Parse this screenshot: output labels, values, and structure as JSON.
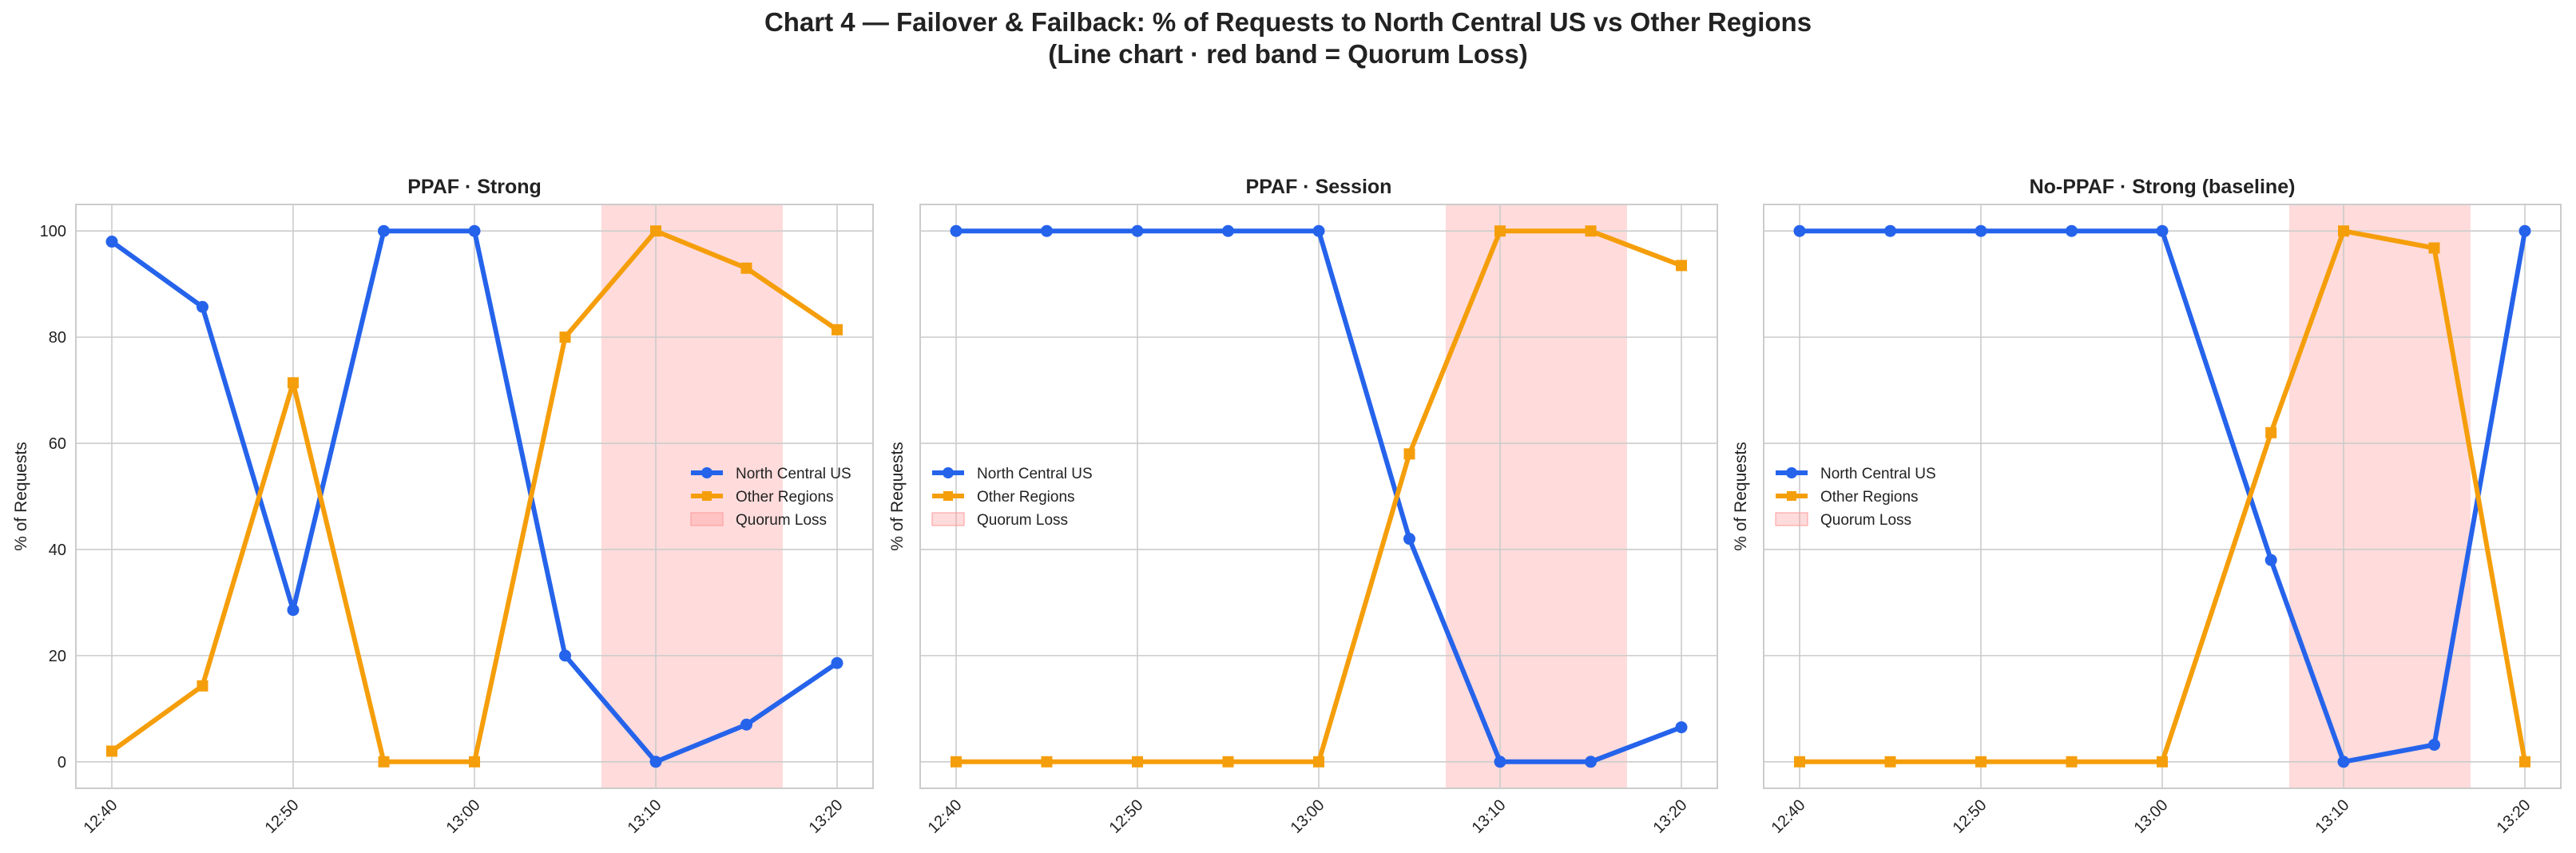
{
  "figure": {
    "title_line1": "Chart 4 — Failover & Failback: % of Requests to North Central US vs Other Regions",
    "title_line2": "(Line chart · red band = Quorum Loss)"
  },
  "colors": {
    "north_central": "#2563eb",
    "other_regions": "#f59e0b",
    "quorum_band": "#ff9999",
    "grid": "#cccccc",
    "frame": "#cccccc"
  },
  "chart_data": [
    {
      "type": "line",
      "title": "PPAF · Strong",
      "ylabel": "% of Requests",
      "xlabel": "",
      "x": [
        "12:40",
        "12:45",
        "12:50",
        "12:55",
        "13:00",
        "13:05",
        "13:10",
        "13:15",
        "13:20"
      ],
      "x_tick_labels": [
        "12:40",
        "12:50",
        "13:00",
        "13:10",
        "13:20"
      ],
      "y_ticks": [
        0,
        20,
        40,
        60,
        80,
        100
      ],
      "ylim": [
        -5,
        105
      ],
      "grid": true,
      "legend_position": "center-right",
      "shaded_region": {
        "label": "Quorum Loss",
        "x_start": "13:07",
        "x_end": "13:17"
      },
      "series": [
        {
          "name": "North Central US",
          "marker": "circle",
          "values": [
            98,
            85.7,
            28.6,
            100,
            100,
            20,
            0,
            7,
            18.6
          ]
        },
        {
          "name": "Other Regions",
          "marker": "square",
          "values": [
            2,
            14.3,
            71.4,
            0,
            0,
            80,
            100,
            93,
            81.4
          ]
        }
      ]
    },
    {
      "type": "line",
      "title": "PPAF · Session",
      "ylabel": "% of Requests",
      "xlabel": "",
      "x": [
        "12:40",
        "12:45",
        "12:50",
        "12:55",
        "13:00",
        "13:05",
        "13:10",
        "13:15",
        "13:20"
      ],
      "x_tick_labels": [
        "12:40",
        "12:50",
        "13:00",
        "13:10",
        "13:20"
      ],
      "y_ticks": [
        0,
        20,
        40,
        60,
        80,
        100
      ],
      "ylim": [
        -5,
        105
      ],
      "grid": true,
      "legend_position": "center-left",
      "shaded_region": {
        "label": "Quorum Loss",
        "x_start": "13:07",
        "x_end": "13:17"
      },
      "series": [
        {
          "name": "North Central US",
          "marker": "circle",
          "values": [
            100,
            100,
            100,
            100,
            100,
            42,
            0,
            0,
            6.5
          ]
        },
        {
          "name": "Other Regions",
          "marker": "square",
          "values": [
            0,
            0,
            0,
            0,
            0,
            58,
            100,
            100,
            93.5
          ]
        }
      ]
    },
    {
      "type": "line",
      "title": "No-PPAF · Strong (baseline)",
      "ylabel": "% of Requests",
      "xlabel": "",
      "x": [
        "12:40",
        "12:45",
        "12:50",
        "12:55",
        "13:00",
        "13:06",
        "13:10",
        "13:15",
        "13:20"
      ],
      "x_tick_labels": [
        "12:40",
        "12:50",
        "13:00",
        "13:10",
        "13:20"
      ],
      "y_ticks": [
        0,
        20,
        40,
        60,
        80,
        100
      ],
      "ylim": [
        -5,
        105
      ],
      "grid": true,
      "legend_position": "center-left",
      "shaded_region": {
        "label": "Quorum Loss",
        "x_start": "13:07",
        "x_end": "13:17"
      },
      "series": [
        {
          "name": "North Central US",
          "marker": "circle",
          "values": [
            100,
            100,
            100,
            100,
            100,
            38,
            0,
            3.2,
            100
          ]
        },
        {
          "name": "Other Regions",
          "marker": "square",
          "values": [
            0,
            0,
            0,
            0,
            0,
            62,
            100,
            96.8,
            0
          ]
        }
      ]
    }
  ]
}
